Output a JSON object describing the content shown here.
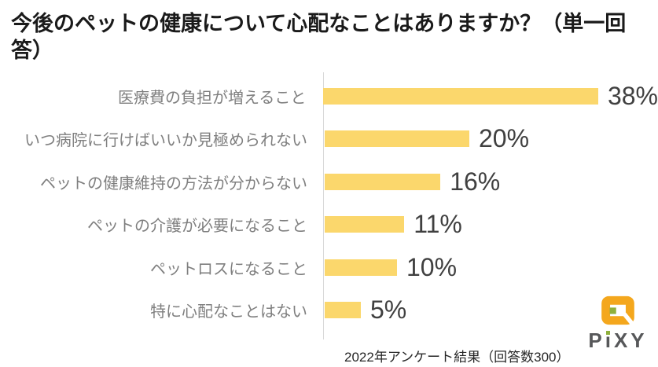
{
  "title": "今後のペットの健康について心配なことはありますか？（単一回答）",
  "chart_data": {
    "type": "bar",
    "orientation": "horizontal",
    "title": "今後のペットの健康について心配なことはありますか？（単一回答）",
    "categories": [
      "医療費の負担が増えること",
      "いつ病院に行けばいいか見極められない",
      "ペットの健康維持の方法が分からない",
      "ペットの介護が必要になること",
      "ペットロスになること",
      "特に心配なことはない"
    ],
    "values": [
      38,
      20,
      16,
      11,
      10,
      5
    ],
    "value_suffix": "%",
    "xlim": [
      0,
      40
    ],
    "grid": false,
    "legend": false,
    "bar_color": "#fbd76c",
    "value_label_color": "#404040",
    "category_label_color": "#7f7f7f",
    "axis_line_color": "#d9d9d9",
    "source_note": "2022年アンケート結果（回答数300）"
  },
  "footer": {
    "note": "2022年アンケート結果（回答数300）"
  },
  "logo": {
    "text": "PiXY",
    "mark_color": "#f4a71d",
    "dot_color": "#8fb03c",
    "text_color": "#57585a"
  }
}
